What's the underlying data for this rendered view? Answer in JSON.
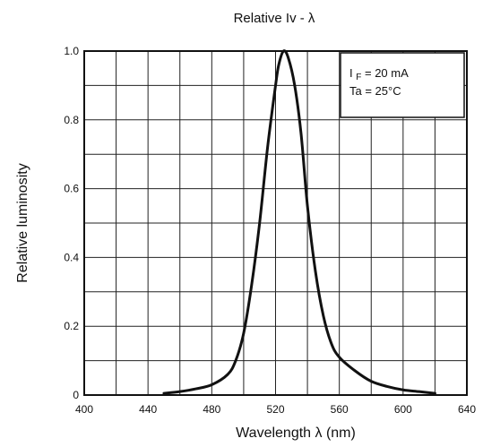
{
  "chart_data": {
    "type": "line",
    "title": "Relative Iv - λ",
    "xlabel": "Wavelength   λ   (nm)",
    "ylabel": "Relative luminosity",
    "xlim": [
      400,
      640
    ],
    "ylim": [
      0,
      1.0
    ],
    "x_ticks": [
      400,
      440,
      480,
      520,
      560,
      600,
      640
    ],
    "y_ticks": [
      0,
      0.2,
      0.4,
      0.6,
      0.8,
      1.0
    ],
    "x_tick_labels": [
      "400",
      "440",
      "480",
      "520",
      "560",
      "600",
      "640"
    ],
    "y_tick_labels": [
      "0",
      "0.2",
      "0.4",
      "0.6",
      "0.8",
      "1.0"
    ],
    "grid": true,
    "annotation": {
      "line1": {
        "prefix": "I",
        "subscript": "F",
        "suffix": " = 20 mA"
      },
      "line2": "Ta = 25°C"
    },
    "series": [
      {
        "points": [
          [
            450,
            0.005
          ],
          [
            460,
            0.01
          ],
          [
            470,
            0.018
          ],
          [
            480,
            0.03
          ],
          [
            490,
            0.06
          ],
          [
            495,
            0.1
          ],
          [
            500,
            0.18
          ],
          [
            505,
            0.32
          ],
          [
            510,
            0.5
          ],
          [
            515,
            0.72
          ],
          [
            520,
            0.9
          ],
          [
            522,
            0.96
          ],
          [
            525,
            1.0
          ],
          [
            528,
            0.98
          ],
          [
            532,
            0.9
          ],
          [
            536,
            0.76
          ],
          [
            540,
            0.55
          ],
          [
            545,
            0.36
          ],
          [
            550,
            0.23
          ],
          [
            555,
            0.15
          ],
          [
            560,
            0.11
          ],
          [
            570,
            0.07
          ],
          [
            580,
            0.04
          ],
          [
            590,
            0.025
          ],
          [
            600,
            0.015
          ],
          [
            610,
            0.01
          ],
          [
            620,
            0.005
          ]
        ]
      }
    ]
  }
}
